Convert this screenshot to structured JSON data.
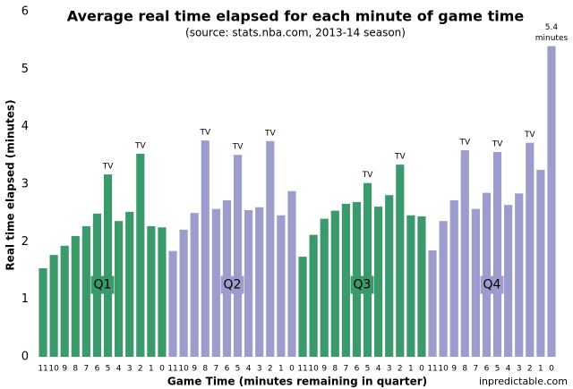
{
  "chart_data": {
    "type": "bar",
    "title": "Average real time elapsed for each minute of game time",
    "subtitle": "(source: stats.nba.com, 2013-14 season)",
    "x_label": "Game Time (minutes remaining in quarter)",
    "y_label": "Real time elapsed (minutes)",
    "source": "inpredictable.com",
    "categories": [
      "11",
      "10",
      "9",
      "8",
      "7",
      "6",
      "5",
      "4",
      "3",
      "2",
      "1",
      "0"
    ],
    "series": [
      {
        "name": "Q1",
        "color": "#3a9a6b",
        "values": [
          1.54,
          1.77,
          1.93,
          2.1,
          2.27,
          2.49,
          3.17,
          2.36,
          2.52,
          3.53,
          2.27,
          2.25
        ]
      },
      {
        "name": "Q2",
        "color": "#9d9dcd",
        "values": [
          1.84,
          2.21,
          2.5,
          3.76,
          2.57,
          2.72,
          3.51,
          2.55,
          2.6,
          3.75,
          2.46,
          2.88
        ]
      },
      {
        "name": "Q3",
        "color": "#3a9a6b",
        "values": [
          1.74,
          2.12,
          2.4,
          2.54,
          2.66,
          2.69,
          3.02,
          2.61,
          2.81,
          3.34,
          2.46,
          2.44
        ]
      },
      {
        "name": "Q4",
        "color": "#9d9dcd",
        "values": [
          1.85,
          2.36,
          2.72,
          3.59,
          2.57,
          2.85,
          3.56,
          2.64,
          2.84,
          3.72,
          3.25,
          5.4
        ]
      }
    ],
    "annotations": [
      {
        "text": "TV",
        "series": 0,
        "index": 6
      },
      {
        "text": "TV",
        "series": 0,
        "index": 9
      },
      {
        "text": "TV",
        "series": 1,
        "index": 3
      },
      {
        "text": "TV",
        "series": 1,
        "index": 6
      },
      {
        "text": "TV",
        "series": 1,
        "index": 9
      },
      {
        "text": "TV",
        "series": 2,
        "index": 6
      },
      {
        "text": "TV",
        "series": 2,
        "index": 9
      },
      {
        "text": "TV",
        "series": 3,
        "index": 3
      },
      {
        "text": "TV",
        "series": 3,
        "index": 6
      },
      {
        "text": "TV",
        "series": 3,
        "index": 9
      },
      {
        "text": "5.4",
        "series": 3,
        "index": 11
      },
      {
        "text": "minutes",
        "series": 3,
        "index": 11
      }
    ],
    "ylim": [
      0,
      6
    ],
    "yticks": [
      0,
      1,
      2,
      3,
      4,
      5,
      6
    ],
    "grid": false
  }
}
